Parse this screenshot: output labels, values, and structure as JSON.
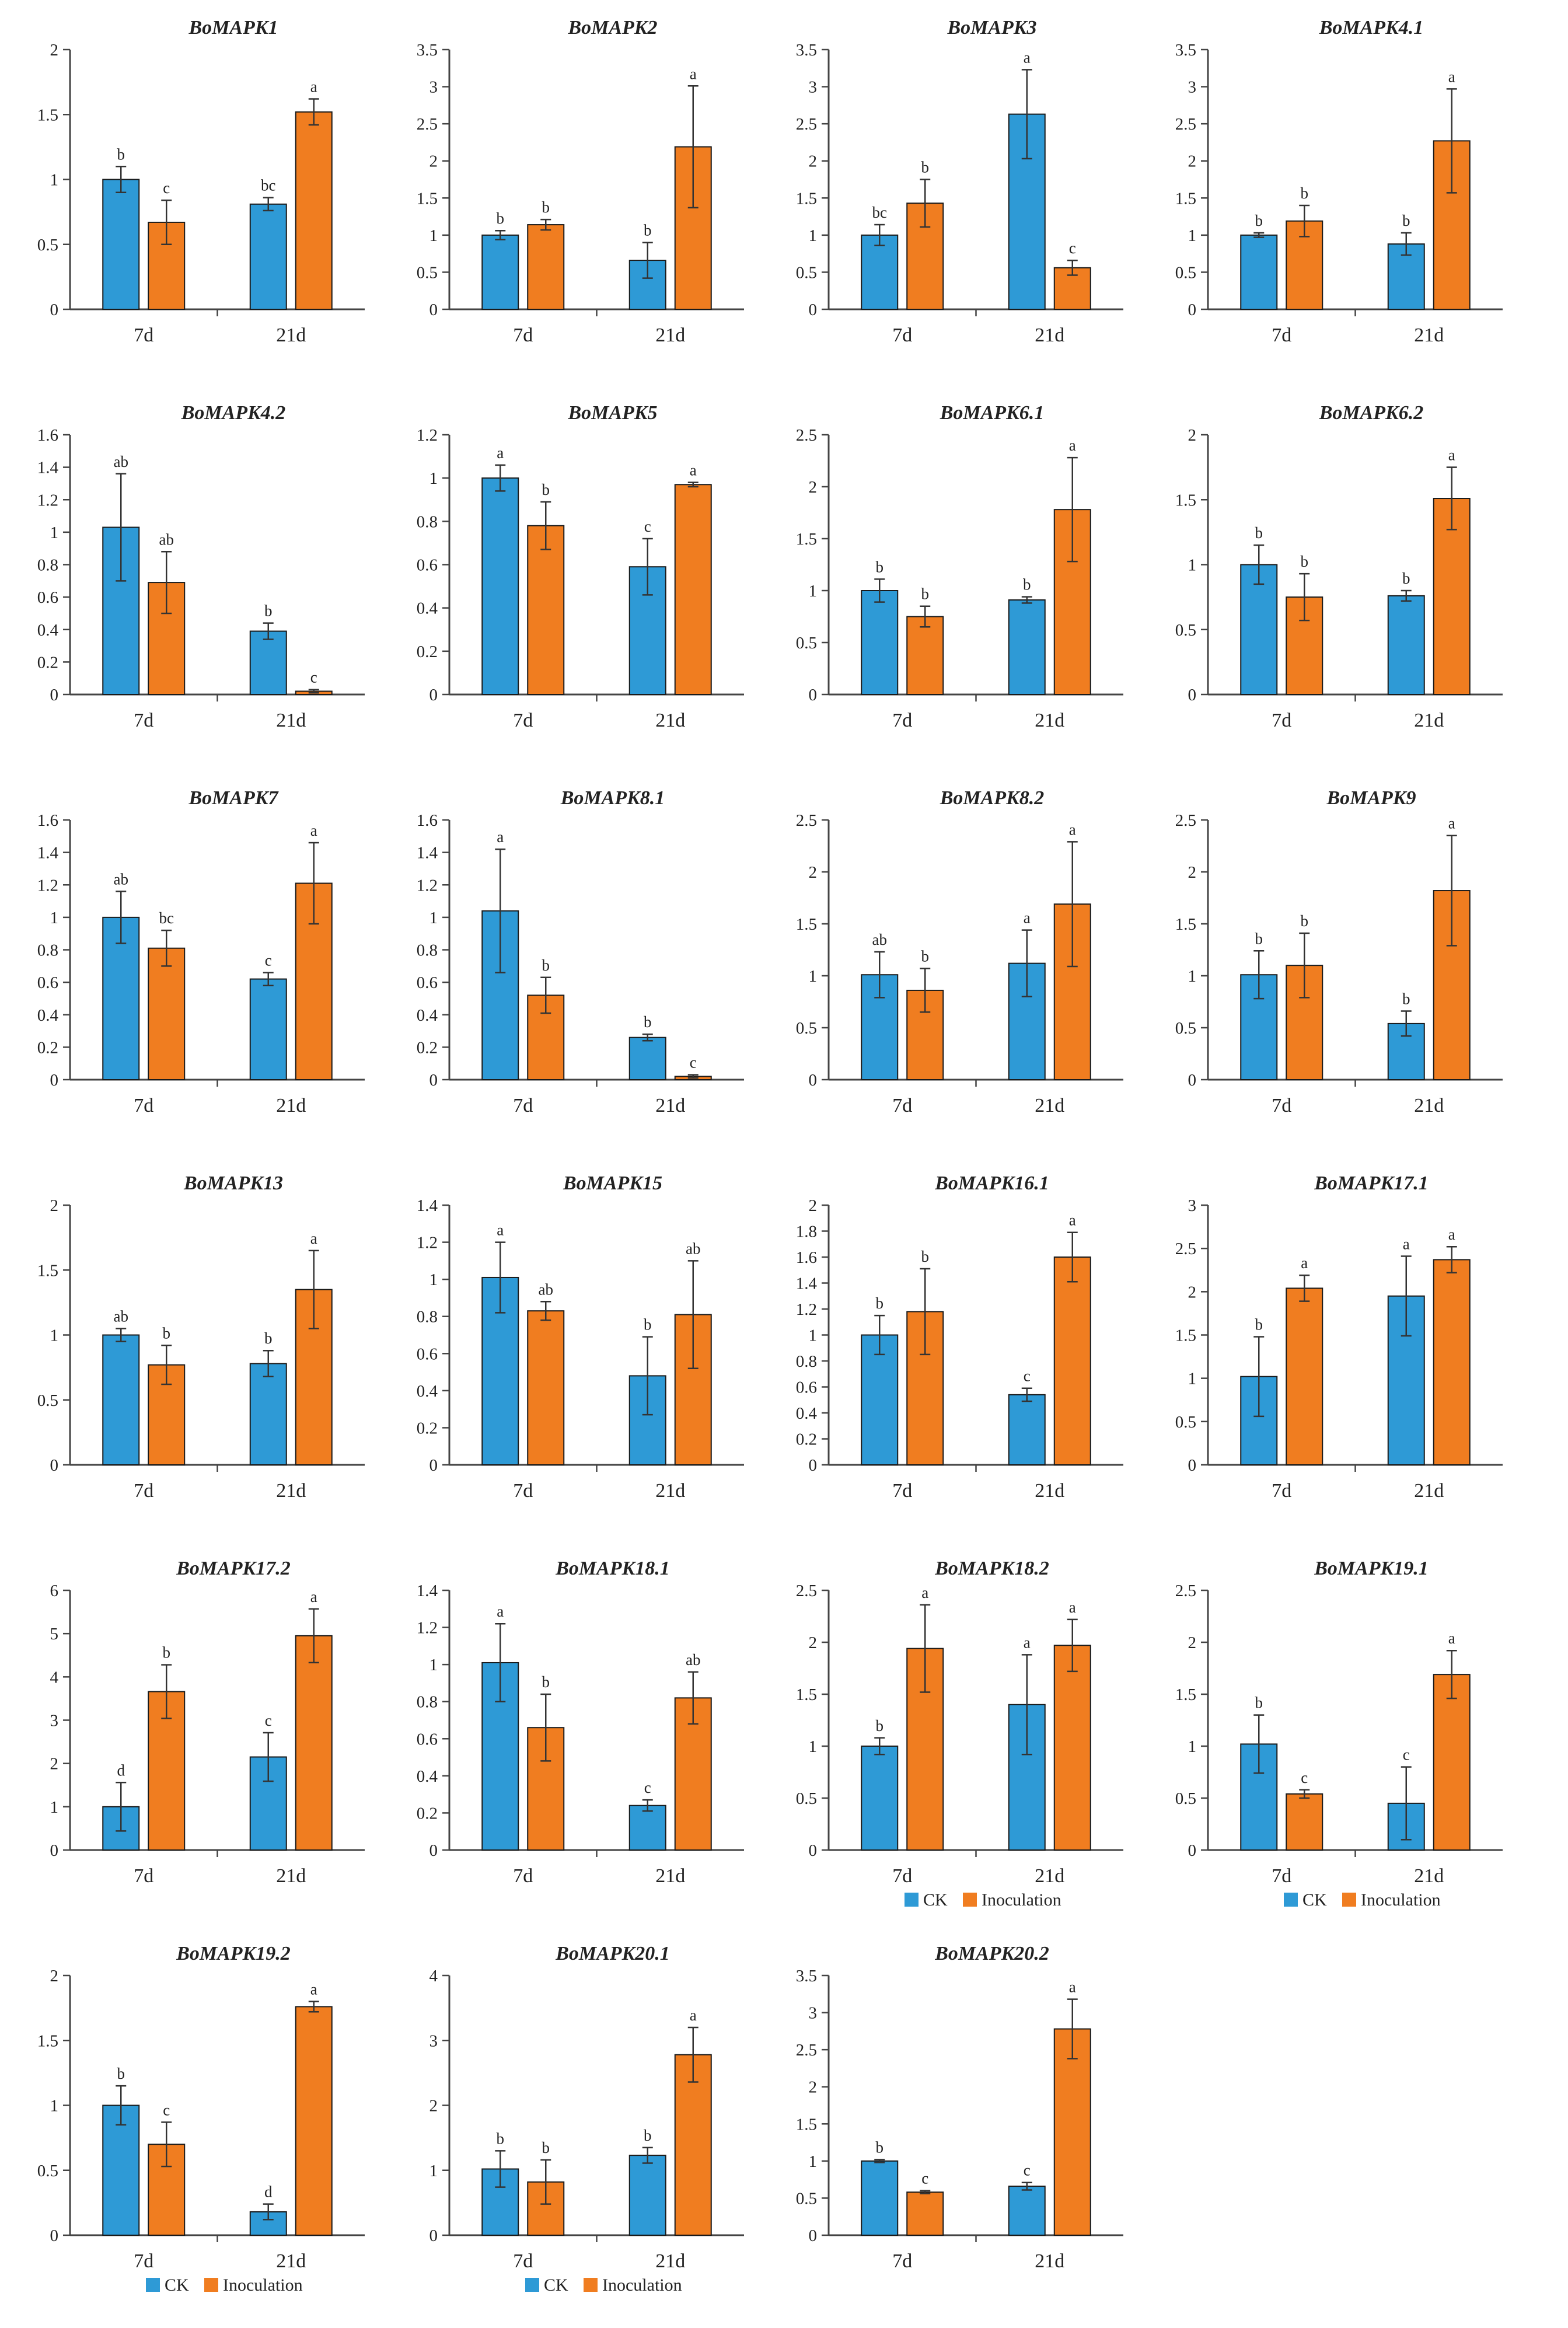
{
  "colors": {
    "ck": "#2e9ad6",
    "inoculation": "#f07d20"
  },
  "legend": {
    "ck_label": "CK",
    "inoculation_label": "Inoculation",
    "legend_panels": [
      19,
      20,
      21,
      22
    ]
  },
  "chart_data": [
    {
      "type": "bar",
      "title": "BoMAPK1",
      "categories": [
        "7d",
        "21d"
      ],
      "yticks": [
        "0",
        "0.5",
        "1",
        "1.5",
        "2"
      ],
      "ylim": [
        0,
        2
      ],
      "series": [
        {
          "name": "CK",
          "values": [
            1.0,
            0.81
          ],
          "errors": [
            0.1,
            0.05
          ],
          "labels": [
            "b",
            "bc"
          ]
        },
        {
          "name": "Inoculation",
          "values": [
            0.67,
            1.52
          ],
          "errors": [
            0.17,
            0.1
          ],
          "labels": [
            "c",
            "a"
          ]
        }
      ]
    },
    {
      "type": "bar",
      "title": "BoMAPK2",
      "categories": [
        "7d",
        "21d"
      ],
      "yticks": [
        "0",
        "0.5",
        "1",
        "1.5",
        "2",
        "2.5",
        "3",
        "3.5"
      ],
      "ylim": [
        0,
        3.5
      ],
      "series": [
        {
          "name": "CK",
          "values": [
            1.0,
            0.66
          ],
          "errors": [
            0.06,
            0.24
          ],
          "labels": [
            "b",
            "b"
          ]
        },
        {
          "name": "Inoculation",
          "values": [
            1.14,
            2.19
          ],
          "errors": [
            0.07,
            0.82
          ],
          "labels": [
            "b",
            "a"
          ]
        }
      ]
    },
    {
      "type": "bar",
      "title": "BoMAPK3",
      "categories": [
        "7d",
        "21d"
      ],
      "yticks": [
        "0",
        "0.5",
        "1",
        "1.5",
        "2",
        "2.5",
        "3",
        "3.5"
      ],
      "ylim": [
        0,
        3.5
      ],
      "series": [
        {
          "name": "CK",
          "values": [
            1.0,
            2.63
          ],
          "errors": [
            0.14,
            0.6
          ],
          "labels": [
            "bc",
            "a"
          ]
        },
        {
          "name": "Inoculation",
          "values": [
            1.43,
            0.56
          ],
          "errors": [
            0.32,
            0.1
          ],
          "labels": [
            "b",
            "c"
          ]
        }
      ]
    },
    {
      "type": "bar",
      "title": "BoMAPK4.1",
      "categories": [
        "7d",
        "21d"
      ],
      "yticks": [
        "0",
        "0.5",
        "1",
        "1.5",
        "2",
        "2.5",
        "3",
        "3.5"
      ],
      "ylim": [
        0,
        3.5
      ],
      "series": [
        {
          "name": "CK",
          "values": [
            1.0,
            0.88
          ],
          "errors": [
            0.03,
            0.15
          ],
          "labels": [
            "b",
            "b"
          ]
        },
        {
          "name": "Inoculation",
          "values": [
            1.19,
            2.27
          ],
          "errors": [
            0.21,
            0.7
          ],
          "labels": [
            "b",
            "a"
          ]
        }
      ]
    },
    {
      "type": "bar",
      "title": "BoMAPK4.2",
      "categories": [
        "7d",
        "21d"
      ],
      "yticks": [
        "0",
        "0.2",
        "0.4",
        "0.6",
        "0.8",
        "1",
        "1.2",
        "1.4",
        "1.6"
      ],
      "ylim": [
        0,
        1.6
      ],
      "series": [
        {
          "name": "CK",
          "values": [
            1.03,
            0.39
          ],
          "errors": [
            0.33,
            0.05
          ],
          "labels": [
            "ab",
            "b"
          ]
        },
        {
          "name": "Inoculation",
          "values": [
            0.69,
            0.02
          ],
          "errors": [
            0.19,
            0.01
          ],
          "labels": [
            "ab",
            "c"
          ]
        }
      ]
    },
    {
      "type": "bar",
      "title": "BoMAPK5",
      "categories": [
        "7d",
        "21d"
      ],
      "yticks": [
        "0",
        "0.2",
        "0.4",
        "0.6",
        "0.8",
        "1",
        "1.2"
      ],
      "ylim": [
        0,
        1.2
      ],
      "series": [
        {
          "name": "CK",
          "values": [
            1.0,
            0.59
          ],
          "errors": [
            0.06,
            0.13
          ],
          "labels": [
            "a",
            "c"
          ]
        },
        {
          "name": "Inoculation",
          "values": [
            0.78,
            0.97
          ],
          "errors": [
            0.11,
            0.01
          ],
          "labels": [
            "b",
            "a"
          ]
        }
      ]
    },
    {
      "type": "bar",
      "title": "BoMAPK6.1",
      "categories": [
        "7d",
        "21d"
      ],
      "yticks": [
        "0",
        "0.5",
        "1",
        "1.5",
        "2",
        "2.5"
      ],
      "ylim": [
        0,
        2.5
      ],
      "series": [
        {
          "name": "CK",
          "values": [
            1.0,
            0.91
          ],
          "errors": [
            0.11,
            0.03
          ],
          "labels": [
            "b",
            "b"
          ]
        },
        {
          "name": "Inoculation",
          "values": [
            0.75,
            1.78
          ],
          "errors": [
            0.1,
            0.5
          ],
          "labels": [
            "b",
            "a"
          ]
        }
      ]
    },
    {
      "type": "bar",
      "title": "BoMAPK6.2",
      "categories": [
        "7d",
        "21d"
      ],
      "yticks": [
        "0",
        "0.5",
        "1",
        "1.5",
        "2"
      ],
      "ylim": [
        0,
        2
      ],
      "series": [
        {
          "name": "CK",
          "values": [
            1.0,
            0.76
          ],
          "errors": [
            0.15,
            0.04
          ],
          "labels": [
            "b",
            "b"
          ]
        },
        {
          "name": "Inoculation",
          "values": [
            0.75,
            1.51
          ],
          "errors": [
            0.18,
            0.24
          ],
          "labels": [
            "b",
            "a"
          ]
        }
      ]
    },
    {
      "type": "bar",
      "title": "BoMAPK7",
      "categories": [
        "7d",
        "21d"
      ],
      "yticks": [
        "0",
        "0.2",
        "0.4",
        "0.6",
        "0.8",
        "1",
        "1.2",
        "1.4",
        "1.6"
      ],
      "ylim": [
        0,
        1.6
      ],
      "series": [
        {
          "name": "CK",
          "values": [
            1.0,
            0.62
          ],
          "errors": [
            0.16,
            0.04
          ],
          "labels": [
            "ab",
            "c"
          ]
        },
        {
          "name": "Inoculation",
          "values": [
            0.81,
            1.21
          ],
          "errors": [
            0.11,
            0.25
          ],
          "labels": [
            "bc",
            "a"
          ]
        }
      ]
    },
    {
      "type": "bar",
      "title": "BoMAPK8.1",
      "categories": [
        "7d",
        "21d"
      ],
      "yticks": [
        "0",
        "0.2",
        "0.4",
        "0.6",
        "0.8",
        "1",
        "1.2",
        "1.4",
        "1.6"
      ],
      "ylim": [
        0,
        1.6
      ],
      "series": [
        {
          "name": "CK",
          "values": [
            1.04,
            0.26
          ],
          "errors": [
            0.38,
            0.02
          ],
          "labels": [
            "a",
            "b"
          ]
        },
        {
          "name": "Inoculation",
          "values": [
            0.52,
            0.02
          ],
          "errors": [
            0.11,
            0.01
          ],
          "labels": [
            "b",
            "c"
          ]
        }
      ]
    },
    {
      "type": "bar",
      "title": "BoMAPK8.2",
      "categories": [
        "7d",
        "21d"
      ],
      "yticks": [
        "0",
        "0.5",
        "1",
        "1.5",
        "2",
        "2.5"
      ],
      "ylim": [
        0,
        2.5
      ],
      "series": [
        {
          "name": "CK",
          "values": [
            1.01,
            1.12
          ],
          "errors": [
            0.22,
            0.32
          ],
          "labels": [
            "ab",
            "a"
          ]
        },
        {
          "name": "Inoculation",
          "values": [
            0.86,
            1.69
          ],
          "errors": [
            0.21,
            0.6
          ],
          "labels": [
            "b",
            "a"
          ]
        }
      ]
    },
    {
      "type": "bar",
      "title": "BoMAPK9",
      "categories": [
        "7d",
        "21d"
      ],
      "yticks": [
        "0",
        "0.5",
        "1",
        "1.5",
        "2",
        "2.5"
      ],
      "ylim": [
        0,
        2.5
      ],
      "series": [
        {
          "name": "CK",
          "values": [
            1.01,
            0.54
          ],
          "errors": [
            0.23,
            0.12
          ],
          "labels": [
            "b",
            "b"
          ]
        },
        {
          "name": "Inoculation",
          "values": [
            1.1,
            1.82
          ],
          "errors": [
            0.31,
            0.53
          ],
          "labels": [
            "b",
            "a"
          ]
        }
      ]
    },
    {
      "type": "bar",
      "title": "BoMAPK13",
      "categories": [
        "7d",
        "21d"
      ],
      "yticks": [
        "0",
        "0.5",
        "1",
        "1.5",
        "2"
      ],
      "ylim": [
        0,
        2
      ],
      "series": [
        {
          "name": "CK",
          "values": [
            1.0,
            0.78
          ],
          "errors": [
            0.05,
            0.1
          ],
          "labels": [
            "ab",
            "b"
          ]
        },
        {
          "name": "Inoculation",
          "values": [
            0.77,
            1.35
          ],
          "errors": [
            0.15,
            0.3
          ],
          "labels": [
            "b",
            "a"
          ]
        }
      ]
    },
    {
      "type": "bar",
      "title": "BoMAPK15",
      "categories": [
        "7d",
        "21d"
      ],
      "yticks": [
        "0",
        "0.2",
        "0.4",
        "0.6",
        "0.8",
        "1",
        "1.2",
        "1.4"
      ],
      "ylim": [
        0,
        1.4
      ],
      "series": [
        {
          "name": "CK",
          "values": [
            1.01,
            0.48
          ],
          "errors": [
            0.19,
            0.21
          ],
          "labels": [
            "a",
            "b"
          ]
        },
        {
          "name": "Inoculation",
          "values": [
            0.83,
            0.81
          ],
          "errors": [
            0.05,
            0.29
          ],
          "labels": [
            "ab",
            "ab"
          ]
        }
      ]
    },
    {
      "type": "bar",
      "title": "BoMAPK16.1",
      "categories": [
        "7d",
        "21d"
      ],
      "yticks": [
        "0",
        "0.2",
        "0.4",
        "0.6",
        "0.8",
        "1",
        "1.2",
        "1.4",
        "1.6",
        "1.8",
        "2"
      ],
      "ylim": [
        0,
        2
      ],
      "series": [
        {
          "name": "CK",
          "values": [
            1.0,
            0.54
          ],
          "errors": [
            0.15,
            0.05
          ],
          "labels": [
            "b",
            "c"
          ]
        },
        {
          "name": "Inoculation",
          "values": [
            1.18,
            1.6
          ],
          "errors": [
            0.33,
            0.19
          ],
          "labels": [
            "b",
            "a"
          ]
        }
      ]
    },
    {
      "type": "bar",
      "title": "BoMAPK17.1",
      "categories": [
        "7d",
        "21d"
      ],
      "yticks": [
        "0",
        "0.5",
        "1",
        "1.5",
        "2",
        "2.5",
        "3"
      ],
      "ylim": [
        0,
        3
      ],
      "series": [
        {
          "name": "CK",
          "values": [
            1.02,
            1.95
          ],
          "errors": [
            0.46,
            0.46
          ],
          "labels": [
            "b",
            "a"
          ]
        },
        {
          "name": "Inoculation",
          "values": [
            2.04,
            2.37
          ],
          "errors": [
            0.15,
            0.15
          ],
          "labels": [
            "a",
            "a"
          ]
        }
      ]
    },
    {
      "type": "bar",
      "title": "BoMAPK17.2",
      "categories": [
        "7d",
        "21d"
      ],
      "yticks": [
        "0",
        "1",
        "2",
        "3",
        "4",
        "5",
        "6"
      ],
      "ylim": [
        0,
        6
      ],
      "series": [
        {
          "name": "CK",
          "values": [
            1.0,
            2.15
          ],
          "errors": [
            0.56,
            0.56
          ],
          "labels": [
            "d",
            "c"
          ]
        },
        {
          "name": "Inoculation",
          "values": [
            3.66,
            4.95
          ],
          "errors": [
            0.62,
            0.62
          ],
          "labels": [
            "b",
            "a"
          ]
        }
      ]
    },
    {
      "type": "bar",
      "title": "BoMAPK18.1",
      "categories": [
        "7d",
        "21d"
      ],
      "yticks": [
        "0",
        "0.2",
        "0.4",
        "0.6",
        "0.8",
        "1",
        "1.2",
        "1.4"
      ],
      "ylim": [
        0,
        1.4
      ],
      "series": [
        {
          "name": "CK",
          "values": [
            1.01,
            0.24
          ],
          "errors": [
            0.21,
            0.03
          ],
          "labels": [
            "a",
            "c"
          ]
        },
        {
          "name": "Inoculation",
          "values": [
            0.66,
            0.82
          ],
          "errors": [
            0.18,
            0.14
          ],
          "labels": [
            "b",
            "ab"
          ]
        }
      ]
    },
    {
      "type": "bar",
      "title": "BoMAPK18.2",
      "categories": [
        "7d",
        "21d"
      ],
      "yticks": [
        "0",
        "0.5",
        "1",
        "1.5",
        "2",
        "2.5"
      ],
      "ylim": [
        0,
        2.5
      ],
      "series": [
        {
          "name": "CK",
          "values": [
            1.0,
            1.4
          ],
          "errors": [
            0.08,
            0.48
          ],
          "labels": [
            "b",
            "a"
          ]
        },
        {
          "name": "Inoculation",
          "values": [
            1.94,
            1.97
          ],
          "errors": [
            0.42,
            0.25
          ],
          "labels": [
            "a",
            "a"
          ]
        }
      ]
    },
    {
      "type": "bar",
      "title": "BoMAPK19.1",
      "categories": [
        "7d",
        "21d"
      ],
      "yticks": [
        "0",
        "0.5",
        "1",
        "1.5",
        "2",
        "2.5"
      ],
      "ylim": [
        0,
        2.5
      ],
      "series": [
        {
          "name": "CK",
          "values": [
            1.02,
            0.45
          ],
          "errors": [
            0.28,
            0.35
          ],
          "labels": [
            "b",
            "c"
          ]
        },
        {
          "name": "Inoculation",
          "values": [
            0.54,
            1.69
          ],
          "errors": [
            0.04,
            0.23
          ],
          "labels": [
            "c",
            "a"
          ]
        }
      ]
    },
    {
      "type": "bar",
      "title": "BoMAPK19.2",
      "categories": [
        "7d",
        "21d"
      ],
      "yticks": [
        "0",
        "0.5",
        "1",
        "1.5",
        "2"
      ],
      "ylim": [
        0,
        2
      ],
      "series": [
        {
          "name": "CK",
          "values": [
            1.0,
            0.18
          ],
          "errors": [
            0.15,
            0.06
          ],
          "labels": [
            "b",
            "d"
          ]
        },
        {
          "name": "Inoculation",
          "values": [
            0.7,
            1.76
          ],
          "errors": [
            0.17,
            0.04
          ],
          "labels": [
            "c",
            "a"
          ]
        }
      ]
    },
    {
      "type": "bar",
      "title": "BoMAPK20.1",
      "categories": [
        "7d",
        "21d"
      ],
      "yticks": [
        "0",
        "1",
        "2",
        "3",
        "4"
      ],
      "ylim": [
        0,
        4
      ],
      "series": [
        {
          "name": "CK",
          "values": [
            1.02,
            1.23
          ],
          "errors": [
            0.28,
            0.12
          ],
          "labels": [
            "b",
            "b"
          ]
        },
        {
          "name": "Inoculation",
          "values": [
            0.82,
            2.78
          ],
          "errors": [
            0.34,
            0.42
          ],
          "labels": [
            "b",
            "a"
          ]
        }
      ]
    },
    {
      "type": "bar",
      "title": "BoMAPK20.2",
      "categories": [
        "7d",
        "21d"
      ],
      "yticks": [
        "0",
        "0.5",
        "1",
        "1.5",
        "2",
        "2.5",
        "3",
        "3.5"
      ],
      "ylim": [
        0,
        3.5
      ],
      "series": [
        {
          "name": "CK",
          "values": [
            1.0,
            0.66
          ],
          "errors": [
            0.02,
            0.05
          ],
          "labels": [
            "b",
            "c"
          ]
        },
        {
          "name": "Inoculation",
          "values": [
            0.58,
            2.78
          ],
          "errors": [
            0.02,
            0.4
          ],
          "labels": [
            "c",
            "a"
          ]
        }
      ]
    }
  ]
}
